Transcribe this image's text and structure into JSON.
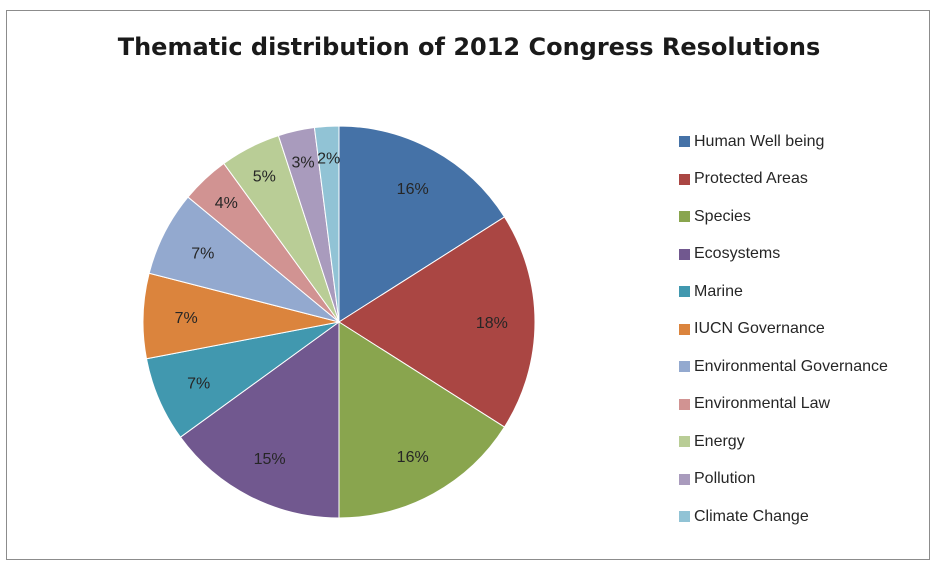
{
  "chart_data": {
    "type": "pie",
    "title": "Thematic distribution of 2012 Congress Resolutions",
    "legend_position": "right",
    "slices": [
      {
        "name": "Human Well being",
        "value": 16,
        "label": "16%",
        "color": "#4572a7"
      },
      {
        "name": "Protected Areas",
        "value": 18,
        "label": "18%",
        "color": "#aa4643"
      },
      {
        "name": "Species",
        "value": 16,
        "label": "16%",
        "color": "#89a54e"
      },
      {
        "name": "Ecosystems",
        "value": 15,
        "label": "15%",
        "color": "#71588f"
      },
      {
        "name": "Marine",
        "value": 7,
        "label": "7%",
        "color": "#4198af"
      },
      {
        "name": "IUCN Governance",
        "value": 7,
        "label": "7%",
        "color": "#db843d"
      },
      {
        "name": "Environmental Governance",
        "value": 7,
        "label": "7%",
        "color": "#93a9cf"
      },
      {
        "name": "Environmental Law",
        "value": 4,
        "label": "4%",
        "color": "#d19392"
      },
      {
        "name": "Energy",
        "value": 5,
        "label": "5%",
        "color": "#b9cd96"
      },
      {
        "name": "Pollution",
        "value": 3,
        "label": "3%",
        "color": "#a99bbd"
      },
      {
        "name": "Climate Change",
        "value": 2,
        "label": "2%",
        "color": "#91c3d5"
      }
    ]
  }
}
